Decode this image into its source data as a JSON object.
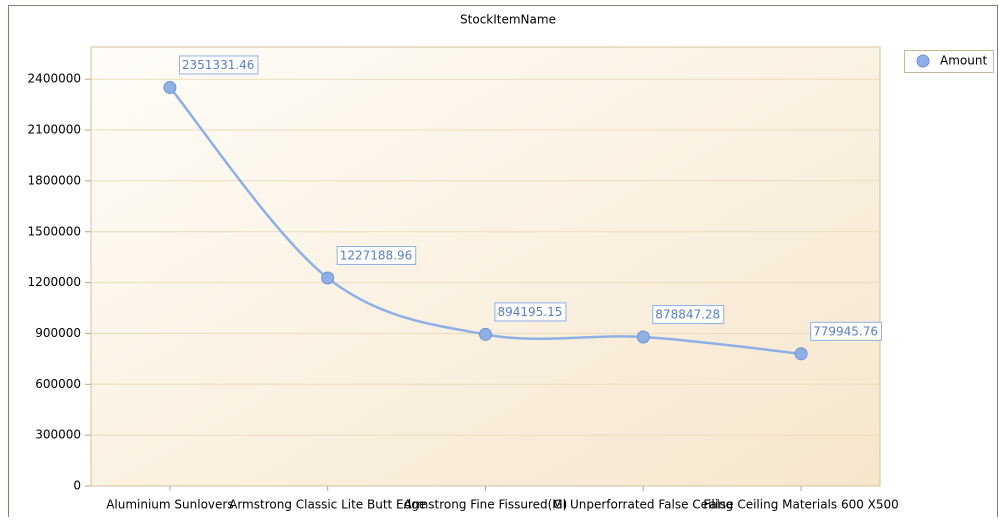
{
  "chart_data": {
    "type": "line",
    "title": "StockItemName",
    "categories": [
      "Aluminium Sunlovers",
      "Armstrong Classic Lite Butt Edge",
      "Armstrong Fine Fissured(M)",
      "GI Unperforrated False Ceiling",
      "False Ceiling Materials 600 X500"
    ],
    "series": [
      {
        "name": "Amount",
        "color": "#8fb0e6",
        "values": [
          2351331.46,
          1227188.96,
          894195.15,
          878847.28,
          779945.76
        ]
      }
    ],
    "ylim": [
      0,
      2590000
    ],
    "yticks": [
      0,
      300000,
      600000,
      900000,
      1200000,
      1500000,
      1800000,
      2100000,
      2400000
    ],
    "grid": true,
    "legend": "top-right",
    "smooth": true
  }
}
